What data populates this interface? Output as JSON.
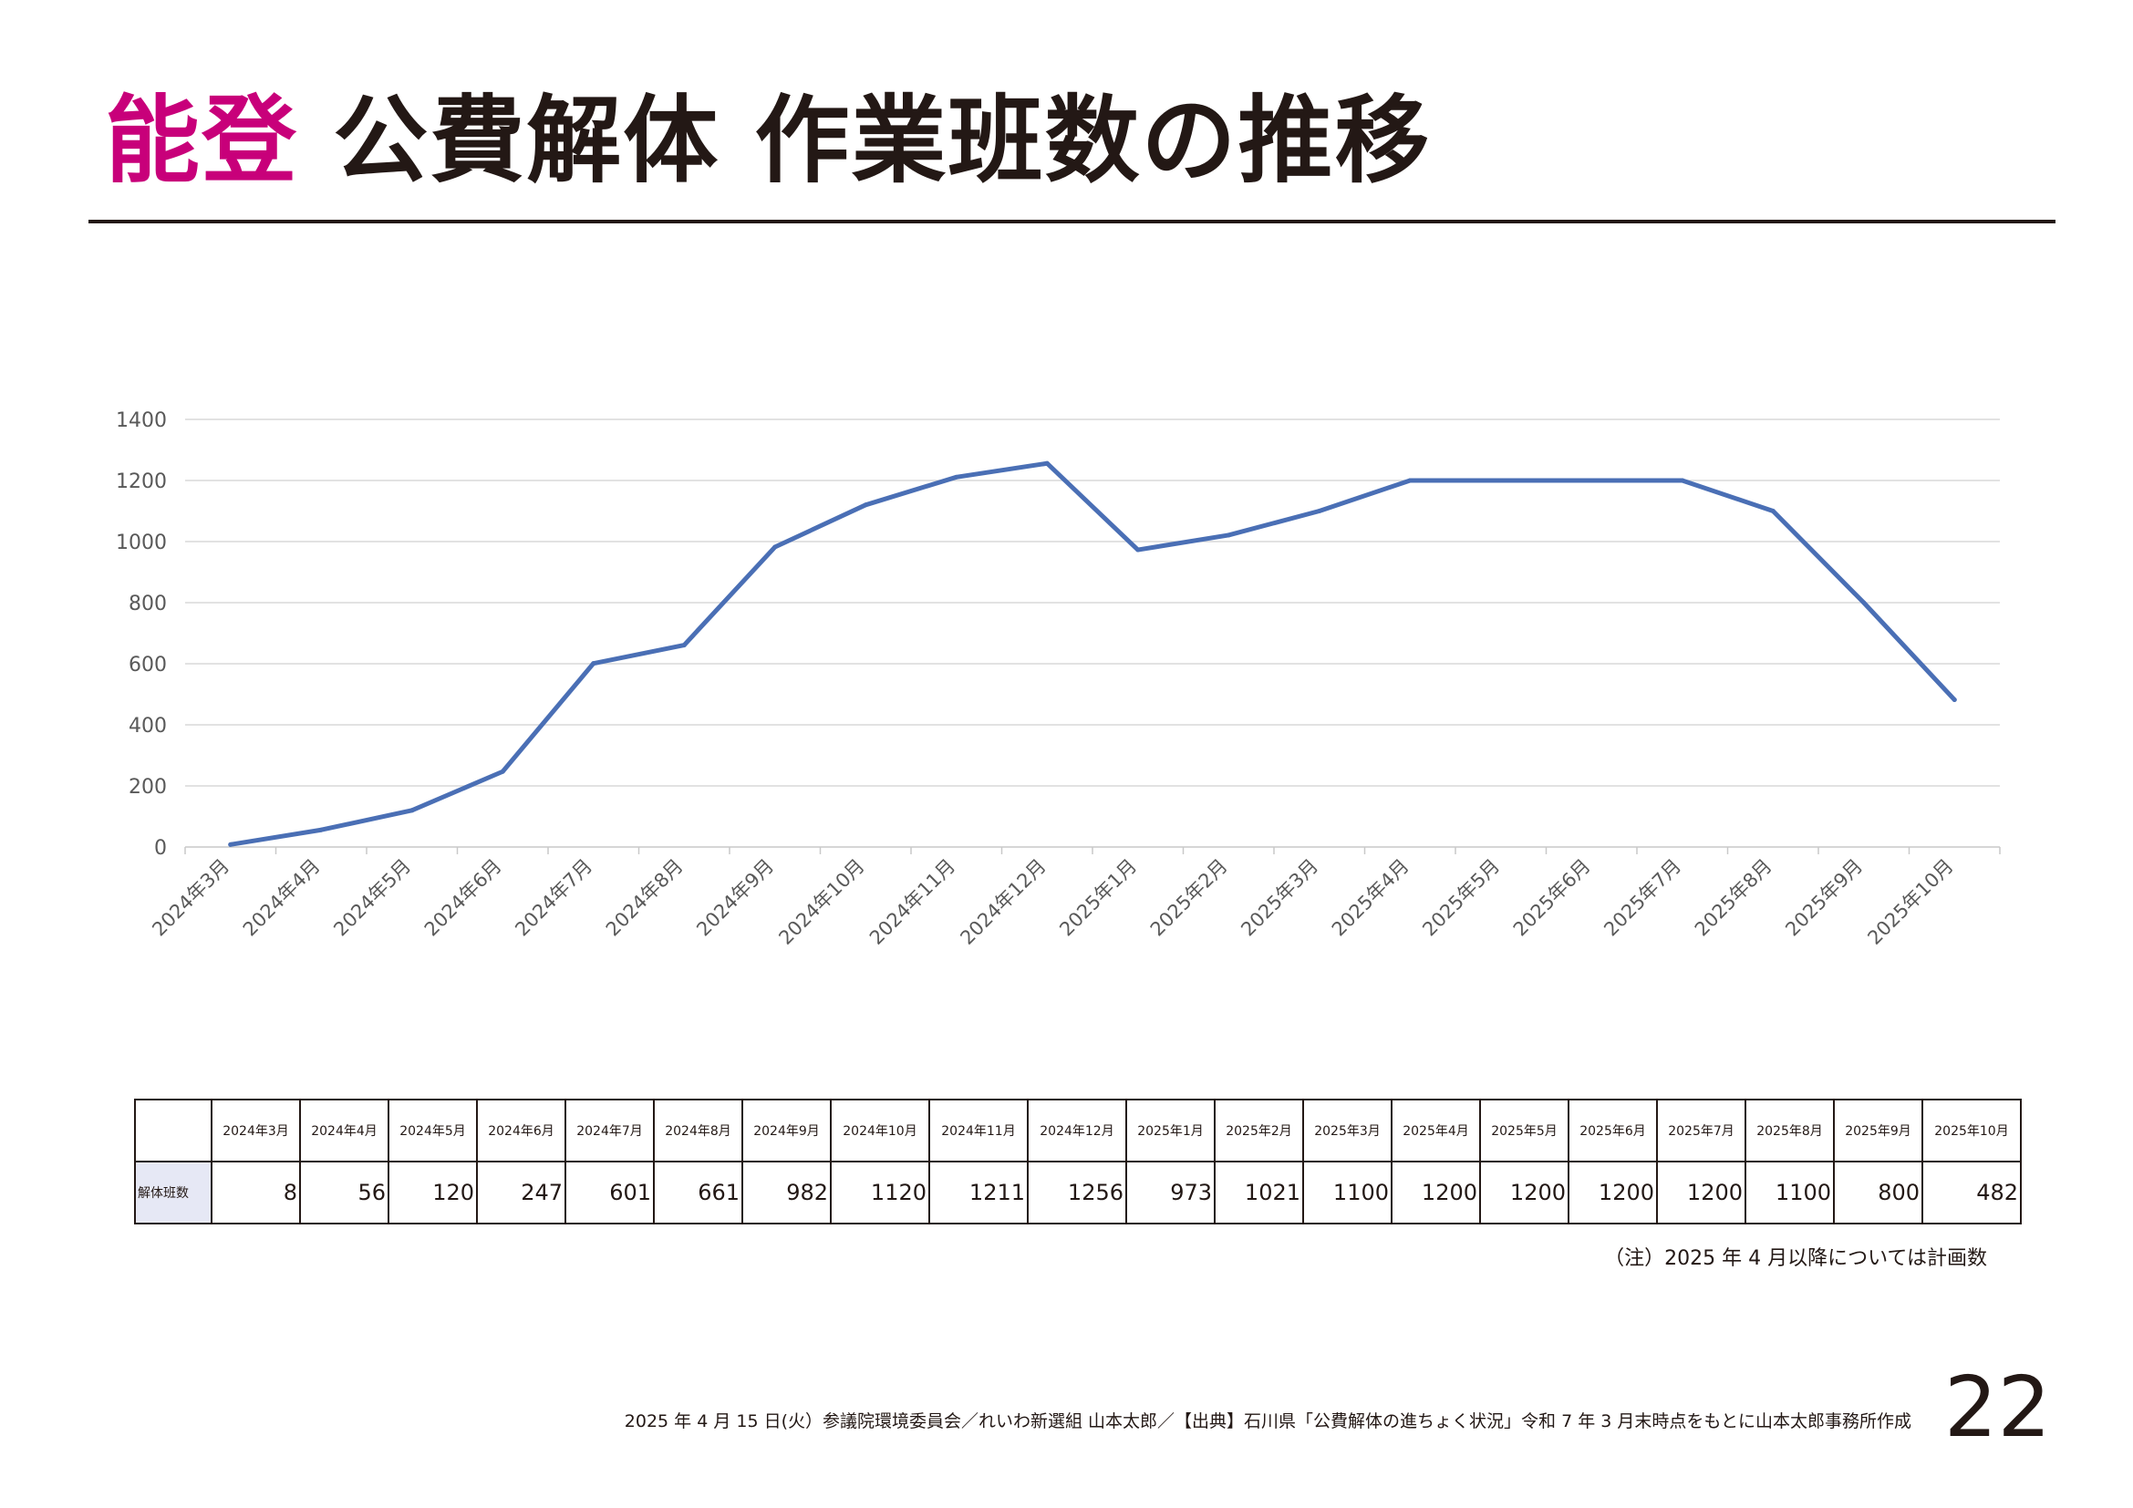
{
  "header": {
    "title_accent": "能登",
    "title_main": "公費解体 作業班数の推移"
  },
  "colors": {
    "accent": "#c8007a",
    "line": "#4a6fb5",
    "table_header_bg": "#e6e8f5",
    "text": "#231815"
  },
  "chart_data": {
    "type": "line",
    "categories": [
      "2024年3月",
      "2024年4月",
      "2024年5月",
      "2024年6月",
      "2024年7月",
      "2024年8月",
      "2024年9月",
      "2024年10月",
      "2024年11月",
      "2024年12月",
      "2025年1月",
      "2025年2月",
      "2025年3月",
      "2025年4月",
      "2025年5月",
      "2025年6月",
      "2025年7月",
      "2025年8月",
      "2025年9月",
      "2025年10月"
    ],
    "series": [
      {
        "values": [
          8,
          56,
          120,
          247,
          601,
          661,
          982,
          1120,
          1211,
          1256,
          973,
          1021,
          1100,
          1200,
          1200,
          1200,
          1200,
          1100,
          800,
          482
        ]
      }
    ],
    "ylim": [
      0,
      1400
    ],
    "yticks": [
      0,
      200,
      400,
      600,
      800,
      1000,
      1200,
      1400
    ],
    "grid": true,
    "legend": "none"
  },
  "table": {
    "row_label": "解体班数",
    "headers": [
      "2024年3月",
      "2024年4月",
      "2024年5月",
      "2024年6月",
      "2024年7月",
      "2024年8月",
      "2024年9月",
      "2024年10月",
      "2024年11月",
      "2024年12月",
      "2025年1月",
      "2025年2月",
      "2025年3月",
      "2025年4月",
      "2025年5月",
      "2025年6月",
      "2025年7月",
      "2025年8月",
      "2025年9月",
      "2025年10月"
    ],
    "values": [
      "8",
      "56",
      "120",
      "247",
      "601",
      "661",
      "982",
      "1120",
      "1211",
      "1256",
      "973",
      "1021",
      "1100",
      "1200",
      "1200",
      "1200",
      "1200",
      "1100",
      "800",
      "482"
    ]
  },
  "note": "（注）2025 年 4 月以降については計画数",
  "footer": "2025 年 4 月 15 日(火）参議院環境委員会／れいわ新選組 山本太郎／【出典】石川県「公費解体の進ちょく状況」令和 7 年 3 月末時点をもとに山本太郎事務所作成",
  "page_number": "22"
}
